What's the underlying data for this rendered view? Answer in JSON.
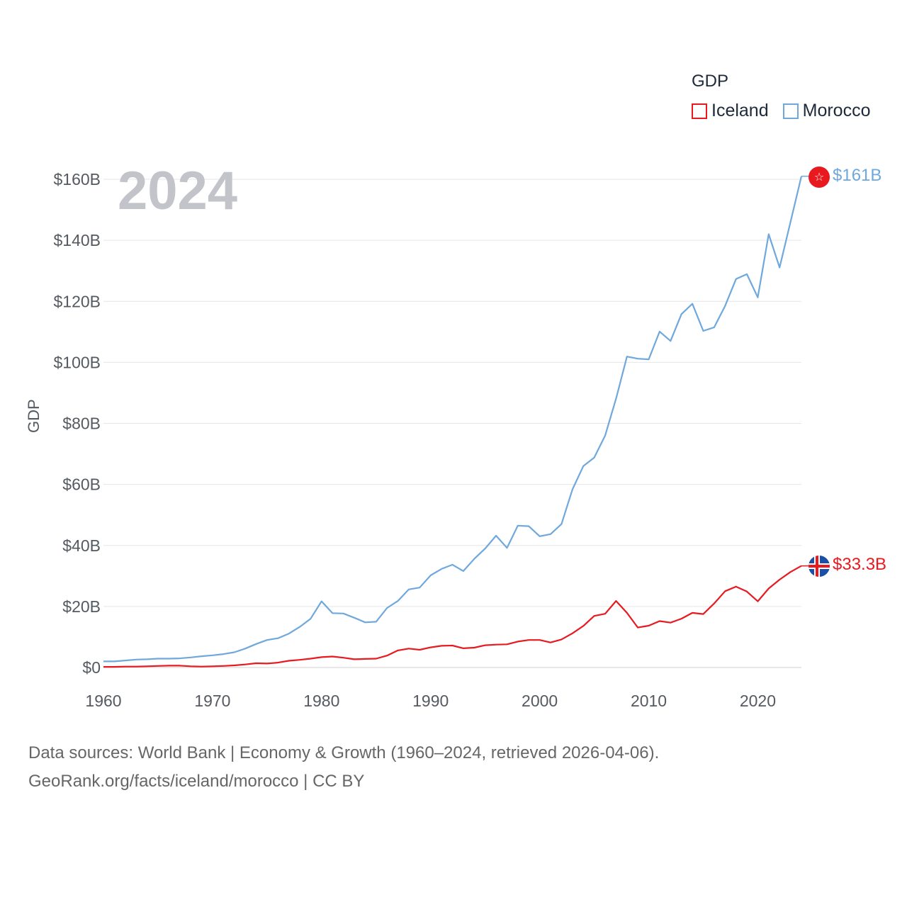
{
  "legend": {
    "title": "GDP",
    "items": [
      {
        "name": "Iceland",
        "color": "#e8191f"
      },
      {
        "name": "Morocco",
        "color": "#6fa8dc"
      }
    ]
  },
  "year_overlay": "2024",
  "end_labels": {
    "morocco": "$161B",
    "iceland": "$33.3B"
  },
  "footer": {
    "line1": "Data sources: World Bank | Economy & Growth (1960–2024, retrieved 2026-04-06).",
    "line2": "GeoRank.org/facts/iceland/morocco | CC BY"
  },
  "chart_data": {
    "type": "line",
    "title": "",
    "xlabel": "",
    "ylabel": "GDP",
    "xlim": [
      1960,
      2024
    ],
    "ylim": [
      0,
      160
    ],
    "yunit": "billion USD",
    "x_ticks": [
      1960,
      1970,
      1980,
      1990,
      2000,
      2010,
      2020
    ],
    "x_tick_labels": [
      "1960",
      "1970",
      "1980",
      "1990",
      "2000",
      "2010",
      "2020"
    ],
    "y_ticks": [
      0,
      20,
      40,
      60,
      80,
      100,
      120,
      140,
      160
    ],
    "y_tick_labels": [
      "$0",
      "$20B",
      "$40B",
      "$60B",
      "$80B",
      "$100B",
      "$120B",
      "$140B",
      "$160B"
    ],
    "grid": true,
    "x": [
      1960,
      1961,
      1962,
      1963,
      1964,
      1965,
      1966,
      1967,
      1968,
      1969,
      1970,
      1971,
      1972,
      1973,
      1974,
      1975,
      1976,
      1977,
      1978,
      1979,
      1980,
      1981,
      1982,
      1983,
      1984,
      1985,
      1986,
      1987,
      1988,
      1989,
      1990,
      1991,
      1992,
      1993,
      1994,
      1995,
      1996,
      1997,
      1998,
      1999,
      2000,
      2001,
      2002,
      2003,
      2004,
      2005,
      2006,
      2007,
      2008,
      2009,
      2010,
      2011,
      2012,
      2013,
      2014,
      2015,
      2016,
      2017,
      2018,
      2019,
      2020,
      2021,
      2022,
      2023,
      2024
    ],
    "series": [
      {
        "name": "Morocco",
        "color": "#6fa8dc",
        "values": [
          2.0,
          2.0,
          2.3,
          2.6,
          2.7,
          2.9,
          2.9,
          3.0,
          3.3,
          3.7,
          4.0,
          4.4,
          5.0,
          6.2,
          7.7,
          9.0,
          9.6,
          11.1,
          13.3,
          16.0,
          21.7,
          17.8,
          17.7,
          16.3,
          14.8,
          15.0,
          19.5,
          21.8,
          25.6,
          26.2,
          30.2,
          32.3,
          33.7,
          31.6,
          35.6,
          39.0,
          43.2,
          39.2,
          46.5,
          46.3,
          43.0,
          43.7,
          47.0,
          58.3,
          66.0,
          68.8,
          76.0,
          88.1,
          101.9,
          101.2,
          101.0,
          110.1,
          107.0,
          115.8,
          119.2,
          110.3,
          111.5,
          118.5,
          127.3,
          128.9,
          121.3,
          142.0,
          131.1,
          146.0,
          161.0
        ]
      },
      {
        "name": "Iceland",
        "color": "#e8191f",
        "values": [
          0.2,
          0.2,
          0.3,
          0.3,
          0.4,
          0.5,
          0.6,
          0.6,
          0.4,
          0.3,
          0.4,
          0.5,
          0.7,
          1.0,
          1.4,
          1.3,
          1.6,
          2.2,
          2.5,
          2.9,
          3.4,
          3.6,
          3.2,
          2.7,
          2.8,
          2.9,
          3.9,
          5.6,
          6.2,
          5.8,
          6.6,
          7.1,
          7.2,
          6.3,
          6.5,
          7.3,
          7.5,
          7.6,
          8.5,
          9.0,
          9.0,
          8.2,
          9.2,
          11.2,
          13.6,
          16.9,
          17.6,
          21.8,
          17.9,
          13.1,
          13.7,
          15.2,
          14.7,
          16.0,
          17.9,
          17.5,
          21.0,
          25.0,
          26.5,
          24.9,
          21.7,
          25.9,
          28.8,
          31.3,
          33.3
        ]
      }
    ]
  }
}
